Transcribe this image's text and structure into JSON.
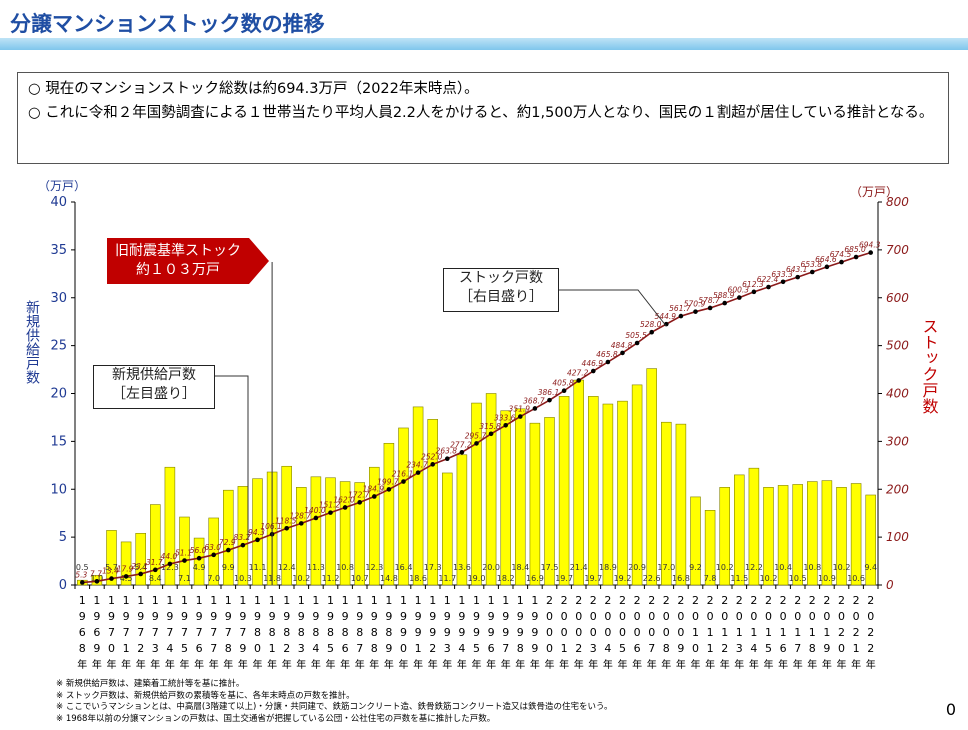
{
  "header": {
    "title": "分譲マンションストック数の推移"
  },
  "summary": {
    "line1": "現在のマンションストック総数は約694.3万戸（2022年末時点）。",
    "line2": "これに令和２年国勢調査による１世帯当たり平均人員2.2人をかけると、約1,500万人となり、国民の１割超が居住している推計となる。"
  },
  "callouts": {
    "old_standard_line1": "旧耐震基準ストック",
    "old_standard_line2": "約１０３万戸",
    "stock_line1": "ストック戸数",
    "stock_line2": "［右目盛り］",
    "supply_line1": "新規供給戸数",
    "supply_line2": "［左目盛り］"
  },
  "footnotes": [
    "※ 新規供給戸数は、建築着工統計等を基に推計。",
    "※ ストック戸数は、新規供給戸数の累積等を基に、各年末時点の戸数を推計。",
    "※ ここでいうマンションとは、中高層(3階建て以上)・分譲・共同建で、鉄筋コンクリート造、鉄骨鉄筋コンクリート造又は鉄骨造の住宅をいう。",
    "※ 1968年以前の分譲マンションの戸数は、国土交通省が把握している公団・公社住宅の戸数を基に推計した戸数。"
  ],
  "page_number": "0",
  "chart_data": {
    "type": "bar",
    "left_axis": {
      "unit": "（万戸）",
      "label": "新規供給戸数",
      "ylim": [
        0,
        40
      ],
      "ticks": [
        0,
        5,
        10,
        15,
        20,
        25,
        30,
        35,
        40
      ]
    },
    "right_axis": {
      "unit": "（万戸）",
      "label": "ストック戸数",
      "ylim": [
        0,
        800
      ],
      "ticks": [
        0,
        100,
        200,
        300,
        400,
        500,
        600,
        700,
        800
      ]
    },
    "year_suffix": "年",
    "categories": [
      "1968",
      "1969",
      "1970",
      "1971",
      "1972",
      "1973",
      "1974",
      "1975",
      "1976",
      "1977",
      "1978",
      "1979",
      "1980",
      "1981",
      "1982",
      "1983",
      "1984",
      "1985",
      "1986",
      "1987",
      "1988",
      "1989",
      "1990",
      "1991",
      "1992",
      "1993",
      "1994",
      "1995",
      "1996",
      "1997",
      "1998",
      "1999",
      "2000",
      "2001",
      "2002",
      "2003",
      "2004",
      "2005",
      "2006",
      "2007",
      "2008",
      "2009",
      "2010",
      "2011",
      "2012",
      "2013",
      "2014",
      "2015",
      "2016",
      "2017",
      "2018",
      "2019",
      "2020",
      "2021",
      "2022"
    ],
    "series": [
      {
        "name": "新規供給戸数",
        "type": "bar",
        "axis": "left",
        "color": "#ffff00",
        "values": [
          0.5,
          1.0,
          5.7,
          4.5,
          5.4,
          8.4,
          12.3,
          7.1,
          4.9,
          7.0,
          9.9,
          10.3,
          11.1,
          11.8,
          12.4,
          10.2,
          11.3,
          11.2,
          10.8,
          10.7,
          12.3,
          14.8,
          16.4,
          18.6,
          17.3,
          11.7,
          13.6,
          19.0,
          20.0,
          18.2,
          18.4,
          16.9,
          17.5,
          19.7,
          21.4,
          19.7,
          18.9,
          19.2,
          20.9,
          22.6,
          17.0,
          16.8,
          9.2,
          7.8,
          10.2,
          11.5,
          12.2,
          10.2,
          10.4,
          10.5,
          10.8,
          10.9,
          10.2,
          10.6,
          9.4
        ],
        "labels": [
          "0.5",
          "1.0",
          "5.7",
          "4.5",
          "5.4",
          "8.4",
          "12.3",
          "7.1",
          "4.9",
          "7.0",
          "9.9",
          "10.3",
          "11.1",
          "11.8",
          "12.4",
          "10.2",
          "11.3",
          "11.2",
          "10.8",
          "10.7",
          "12.3",
          "14.8",
          "16.4",
          "18.6",
          "17.3",
          "11.7",
          "13.6",
          "19.0",
          "20.0",
          "18.2",
          "18.4",
          "16.9",
          "17.5",
          "19.7",
          "21.4",
          "19.7",
          "18.9",
          "19.2",
          "20.9",
          "22.6",
          "17.0",
          "16.8",
          "9.2",
          "7.8",
          "10.2",
          "11.5",
          "12.2",
          "10.2",
          "10.4",
          "10.5",
          "10.8",
          "10.9",
          "10.2",
          "10.6",
          "9.4"
        ]
      },
      {
        "name": "ストック戸数",
        "type": "line",
        "axis": "right",
        "color": "#8b1a1a",
        "values": [
          5.3,
          7.7,
          13.4,
          17.9,
          23.1,
          31.7,
          44.0,
          51.1,
          56.0,
          63.0,
          72.9,
          83.2,
          94.3,
          106.1,
          118.5,
          128.7,
          140.0,
          151.2,
          162.0,
          172.7,
          184.9,
          199.7,
          216.1,
          234.7,
          252.0,
          263.8,
          277.2,
          295.7,
          315.8,
          333.6,
          351.9,
          368.7,
          386.1,
          405.8,
          427.2,
          446.9,
          465.8,
          484.8,
          505.5,
          528.0,
          544.9,
          561.7,
          570.9,
          578.7,
          588.9,
          600.3,
          612.3,
          622.4,
          633.3,
          643.1,
          653.8,
          664.6,
          674.5,
          685.0,
          694.3
        ],
        "labels": [
          "5.3",
          "7.7",
          "13.4",
          "17.9",
          "23.1",
          "31.7",
          "44.0",
          "51.1",
          "56.0",
          "63.0",
          "72.9",
          "83.2",
          "94.3",
          "106.1",
          "118.5",
          "128.7",
          "140.0",
          "151.2",
          "162.0",
          "172.7",
          "184.9",
          "199.7",
          "216.1",
          "234.7",
          "252.0",
          "263.8",
          "277.2",
          "295.7",
          "315.8",
          "333.6",
          "351.9",
          "368.7",
          "386.1",
          "405.8",
          "427.2",
          "446.9",
          "465.8",
          "484.8",
          "505.5",
          "528.0",
          "544.9",
          "561.7",
          "570.9",
          "578.7",
          "588.9",
          "600.3",
          "612.3",
          "622.4",
          "633.3",
          "643.1",
          "653.8",
          "664.6",
          "674.5",
          "685.0",
          "694.3"
        ]
      }
    ],
    "grid": false,
    "divider_year": "1981"
  }
}
